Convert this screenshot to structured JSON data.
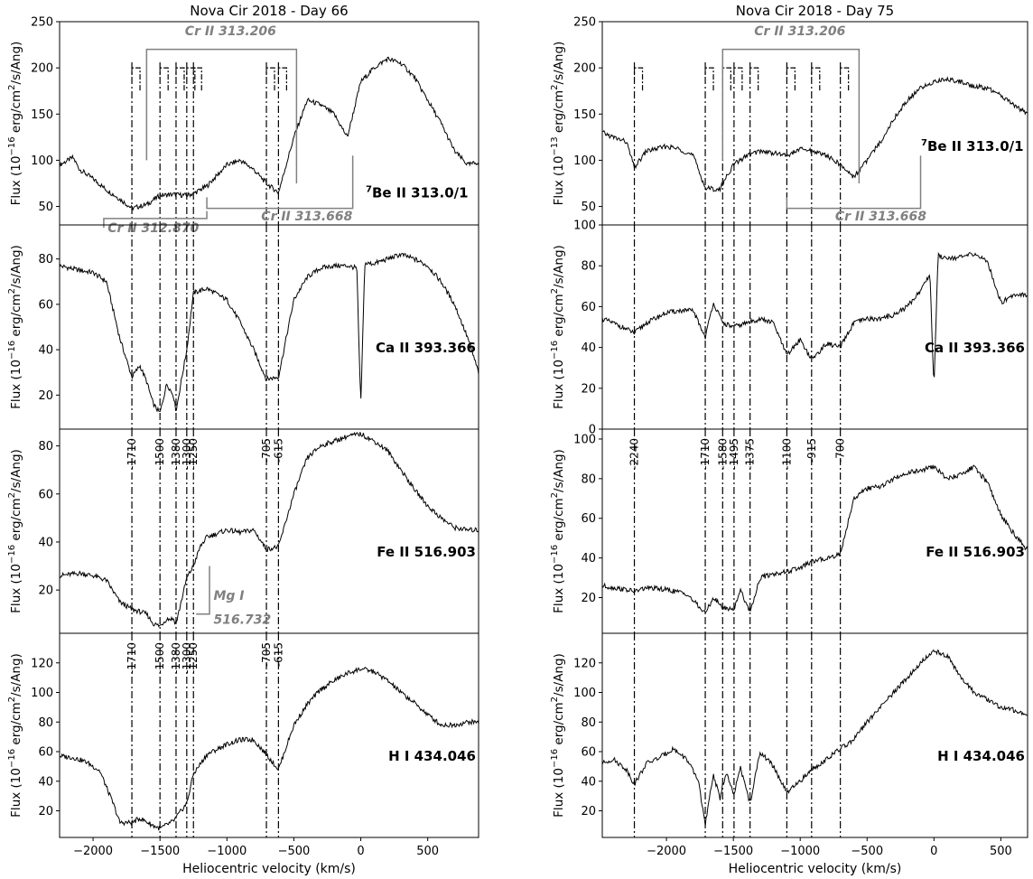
{
  "chart_data": [
    {
      "type": "line",
      "title": "Nova Cir 2018 - Day 66",
      "xlabel": "Heliocentric velocity (km/s)",
      "xlim": [
        -2250,
        880
      ],
      "xticks": [
        -2000,
        -1500,
        -1000,
        -500,
        0,
        500
      ],
      "marker_velocities": [
        -1710,
        -1500,
        -1380,
        -1300,
        -1250,
        -705,
        -615
      ],
      "marker_labels": [
        "-1710",
        "-1500",
        "-1380",
        "-1300",
        "-1250",
        "-705",
        "-615"
      ],
      "panels": [
        {
          "ion": "Be II 313.0/1",
          "ion_prefix": "7",
          "ylabel_main": "Flux (10",
          "ylabel_exp": "−16",
          "ylabel_rest": " erg/cm",
          "ylabel_sq": "2",
          "ylabel_tail": "/s/Ang)",
          "ylim": [
            30,
            250
          ],
          "yticks": [
            50,
            100,
            150,
            200,
            250
          ],
          "x": [
            -2250,
            -2150,
            -2100,
            -2000,
            -1900,
            -1800,
            -1710,
            -1600,
            -1500,
            -1400,
            -1300,
            -1250,
            -1150,
            -1000,
            -900,
            -800,
            -705,
            -615,
            -500,
            -400,
            -300,
            -200,
            -100,
            0,
            100,
            200,
            300,
            400,
            500,
            600,
            700,
            800,
            880
          ],
          "y": [
            95,
            103,
            90,
            80,
            68,
            58,
            48,
            52,
            62,
            63,
            62,
            64,
            72,
            95,
            100,
            90,
            75,
            65,
            125,
            165,
            160,
            150,
            125,
            185,
            200,
            210,
            205,
            190,
            165,
            140,
            110,
            95,
            98
          ],
          "cr_labels": [
            "Cr II 313.206",
            "Cr II 313.668",
            "Cr II 312.870"
          ],
          "cr_colors": [
            "#808080"
          ]
        },
        {
          "ion": "Ca II 393.366",
          "ylabel_main": "Flux (10",
          "ylabel_exp": "−16",
          "ylabel_rest": " erg/cm",
          "ylabel_sq": "2",
          "ylabel_tail": "/s/Ang)",
          "ylim": [
            5,
            95
          ],
          "yticks": [
            20,
            40,
            60,
            80
          ],
          "x": [
            -2250,
            -2100,
            -2000,
            -1900,
            -1800,
            -1710,
            -1650,
            -1600,
            -1550,
            -1500,
            -1450,
            -1400,
            -1380,
            -1300,
            -1250,
            -1150,
            -1000,
            -900,
            -800,
            -705,
            -615,
            -500,
            -400,
            -300,
            -200,
            -100,
            -30,
            0,
            30,
            100,
            200,
            300,
            400,
            500,
            600,
            700,
            800,
            880
          ],
          "y": [
            77,
            75,
            74,
            70,
            45,
            28,
            33,
            26,
            16,
            12,
            25,
            20,
            13,
            40,
            65,
            67,
            62,
            52,
            40,
            27,
            28,
            62,
            72,
            76,
            77,
            77,
            76,
            15,
            78,
            78,
            80,
            82,
            80,
            77,
            70,
            60,
            45,
            30
          ]
        },
        {
          "ion": "Fe II 516.903",
          "ylabel_main": "Flux (10",
          "ylabel_exp": "−16",
          "ylabel_rest": " erg/cm",
          "ylabel_sq": "2",
          "ylabel_tail": "/s/Ang)",
          "ylim": [
            2,
            87
          ],
          "yticks": [
            20,
            40,
            60,
            80
          ],
          "x": [
            -2250,
            -2100,
            -2000,
            -1900,
            -1800,
            -1710,
            -1650,
            -1600,
            -1550,
            -1500,
            -1450,
            -1400,
            -1380,
            -1300,
            -1250,
            -1200,
            -1150,
            -1000,
            -900,
            -800,
            -705,
            -615,
            -500,
            -400,
            -300,
            -200,
            -100,
            0,
            100,
            200,
            300,
            400,
            500,
            600,
            700,
            800,
            880
          ],
          "y": [
            26,
            27,
            26,
            24,
            15,
            12,
            11,
            10,
            6,
            5,
            8,
            8,
            6,
            25,
            30,
            38,
            42,
            45,
            44,
            45,
            37,
            38,
            60,
            75,
            80,
            82,
            84,
            85,
            82,
            78,
            70,
            62,
            55,
            50,
            46,
            45,
            45
          ],
          "mg_label_1": "Mg I",
          "mg_label_2": "516.732"
        },
        {
          "ion": "H I 434.046",
          "ylabel_main": "Flux (10",
          "ylabel_exp": "−16",
          "ylabel_rest": " erg/cm",
          "ylabel_sq": "2",
          "ylabel_tail": "/s/Ang)",
          "ylim": [
            2,
            140
          ],
          "yticks": [
            20,
            40,
            60,
            80,
            100,
            120
          ],
          "x": [
            -2250,
            -2150,
            -2050,
            -1950,
            -1850,
            -1800,
            -1710,
            -1650,
            -1550,
            -1500,
            -1400,
            -1300,
            -1250,
            -1150,
            -1000,
            -900,
            -800,
            -705,
            -615,
            -500,
            -400,
            -300,
            -200,
            -100,
            0,
            100,
            200,
            300,
            400,
            500,
            600,
            700,
            800,
            880
          ],
          "y": [
            57,
            56,
            53,
            47,
            25,
            12,
            12,
            15,
            10,
            8,
            13,
            25,
            45,
            58,
            65,
            68,
            68,
            58,
            48,
            78,
            92,
            102,
            108,
            113,
            116,
            114,
            108,
            100,
            93,
            85,
            78,
            78,
            80,
            80
          ]
        }
      ]
    },
    {
      "type": "line",
      "title": "Nova Cir 2018 - Day 75",
      "xlabel": "Heliocentric velocity (km/s)",
      "xlim": [
        -2480,
        700
      ],
      "xticks": [
        -2000,
        -1500,
        -1000,
        -500,
        0,
        500
      ],
      "marker_velocities": [
        -2240,
        -1710,
        -1580,
        -1495,
        -1375,
        -1100,
        -915,
        -700
      ],
      "marker_labels": [
        "-2240",
        "-1710",
        "-1580",
        "-1495",
        "-1375",
        "-1100",
        "-915",
        "-700"
      ],
      "panels": [
        {
          "ion": "Be II 313.0/1",
          "ion_prefix": "7",
          "ylabel_main": "Flux (10",
          "ylabel_exp": "−13",
          "ylabel_rest": " erg/cm",
          "ylabel_sq": "2",
          "ylabel_tail": "/s/Ang)",
          "ylim": [
            30,
            250
          ],
          "yticks": [
            50,
            100,
            150,
            200,
            250
          ],
          "x": [
            -2480,
            -2400,
            -2300,
            -2240,
            -2150,
            -2000,
            -1900,
            -1800,
            -1710,
            -1600,
            -1580,
            -1500,
            -1400,
            -1300,
            -1200,
            -1100,
            -1000,
            -900,
            -800,
            -700,
            -600,
            -500,
            -400,
            -300,
            -200,
            -100,
            0,
            100,
            200,
            300,
            400,
            500,
            600,
            700
          ],
          "y": [
            130,
            125,
            120,
            92,
            110,
            115,
            112,
            105,
            70,
            68,
            75,
            95,
            105,
            110,
            108,
            105,
            112,
            110,
            105,
            95,
            82,
            100,
            120,
            145,
            165,
            178,
            185,
            188,
            185,
            180,
            178,
            170,
            160,
            150
          ],
          "cr_labels": [
            "Cr II 313.206",
            "Cr II 313.668"
          ]
        },
        {
          "ion": "Ca II 393.366",
          "ylabel_main": "Flux (10",
          "ylabel_exp": "−16",
          "ylabel_rest": " erg/cm",
          "ylabel_sq": "2",
          "ylabel_tail": "/s/Ang)",
          "ylim": [
            0,
            100
          ],
          "yticks": [
            0,
            20,
            40,
            60,
            80,
            100
          ],
          "x": [
            -2480,
            -2400,
            -2300,
            -2240,
            -2150,
            -2000,
            -1900,
            -1800,
            -1710,
            -1650,
            -1580,
            -1500,
            -1400,
            -1300,
            -1200,
            -1100,
            -1000,
            -915,
            -800,
            -700,
            -600,
            -500,
            -400,
            -300,
            -200,
            -100,
            -30,
            0,
            30,
            100,
            200,
            300,
            400,
            500,
            600,
            700
          ],
          "y": [
            54,
            52,
            49,
            47,
            52,
            57,
            58,
            58,
            45,
            62,
            52,
            50,
            52,
            54,
            52,
            36,
            44,
            34,
            42,
            40,
            52,
            54,
            54,
            56,
            60,
            68,
            76,
            20,
            85,
            84,
            84,
            86,
            82,
            62,
            66,
            66
          ]
        },
        {
          "ion": "Fe II 516.903",
          "ylabel_main": "Flux (10",
          "ylabel_exp": "−16",
          "ylabel_rest": " erg/cm",
          "ylabel_sq": "2",
          "ylabel_tail": "/s/Ang)",
          "ylim": [
            2,
            105
          ],
          "yticks": [
            20,
            40,
            60,
            80,
            100
          ],
          "x": [
            -2480,
            -2400,
            -2300,
            -2240,
            -2150,
            -2000,
            -1850,
            -1710,
            -1650,
            -1580,
            -1495,
            -1450,
            -1375,
            -1300,
            -1200,
            -1100,
            -1000,
            -915,
            -800,
            -700,
            -600,
            -500,
            -400,
            -300,
            -200,
            -100,
            0,
            100,
            200,
            300,
            400,
            500,
            600,
            700
          ],
          "y": [
            26,
            25,
            24,
            23,
            25,
            24,
            22,
            12,
            20,
            15,
            14,
            24,
            13,
            30,
            32,
            33,
            35,
            38,
            40,
            42,
            70,
            75,
            76,
            80,
            83,
            84,
            86,
            80,
            82,
            86,
            78,
            62,
            52,
            44
          ]
        },
        {
          "ion": "H I 434.046",
          "ylabel_main": "Flux (10",
          "ylabel_exp": "−16",
          "ylabel_rest": " erg/cm",
          "ylabel_sq": "2",
          "ylabel_tail": "/s/Ang)",
          "ylim": [
            2,
            140
          ],
          "yticks": [
            20,
            40,
            60,
            80,
            100,
            120
          ],
          "x": [
            -2480,
            -2400,
            -2300,
            -2240,
            -2150,
            -2050,
            -1950,
            -1850,
            -1760,
            -1710,
            -1650,
            -1600,
            -1580,
            -1550,
            -1495,
            -1450,
            -1375,
            -1300,
            -1200,
            -1100,
            -1000,
            -915,
            -800,
            -700,
            -600,
            -500,
            -400,
            -300,
            -200,
            -100,
            0,
            100,
            200,
            300,
            400,
            500,
            600,
            700
          ],
          "y": [
            52,
            55,
            48,
            38,
            52,
            56,
            62,
            55,
            40,
            10,
            45,
            28,
            38,
            45,
            30,
            50,
            25,
            60,
            50,
            32,
            40,
            48,
            55,
            62,
            68,
            80,
            90,
            100,
            110,
            120,
            128,
            125,
            110,
            100,
            95,
            90,
            88,
            85
          ]
        }
      ]
    }
  ]
}
